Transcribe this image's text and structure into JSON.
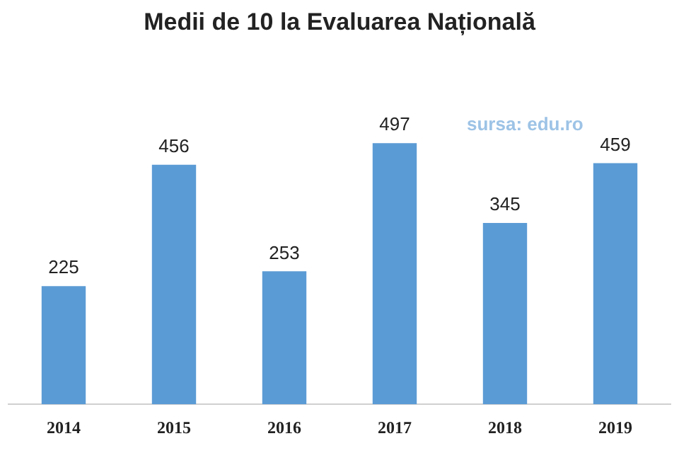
{
  "chart_data": {
    "type": "bar",
    "title": "Medii de 10 la Evaluarea Națională",
    "categories": [
      "2014",
      "2015",
      "2016",
      "2017",
      "2018",
      "2019"
    ],
    "values": [
      225,
      456,
      253,
      497,
      345,
      459
    ],
    "color": "#5b9bd5",
    "data_labels": true,
    "grid": false,
    "legend": false,
    "annotations": [
      "sursa: edu.ro"
    ]
  }
}
